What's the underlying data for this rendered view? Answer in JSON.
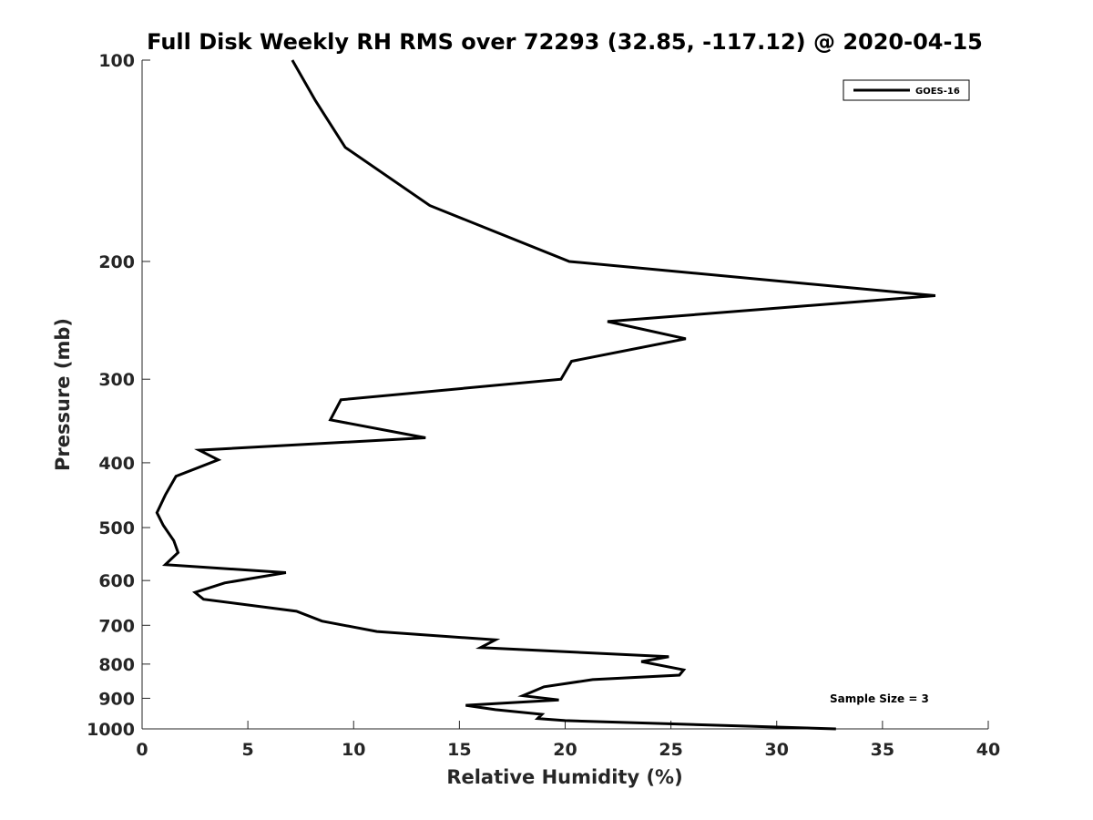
{
  "chart_data": {
    "type": "line",
    "title": "Full Disk Weekly RH RMS over 72293 (32.85, -117.12) @ 2020-04-15",
    "xlabel": "Relative Humidity (%)",
    "ylabel": "Pressure (mb)",
    "xlim": [
      0,
      40
    ],
    "ylim": [
      100,
      1000
    ],
    "yscale": "log",
    "y_reversed": true,
    "xticks": [
      0,
      5,
      10,
      15,
      20,
      25,
      30,
      35,
      40
    ],
    "yticks": [
      100,
      200,
      300,
      400,
      500,
      600,
      700,
      800,
      900,
      1000
    ],
    "grid": false,
    "legend_position": "top-right",
    "series": [
      {
        "name": "GOES-16",
        "color": "#000000",
        "points": [
          [
            7.1,
            100
          ],
          [
            8.2,
            115
          ],
          [
            9.6,
            135
          ],
          [
            13.6,
            165
          ],
          [
            20.2,
            200
          ],
          [
            37.5,
            225
          ],
          [
            22.0,
            246
          ],
          [
            25.7,
            261
          ],
          [
            20.3,
            282
          ],
          [
            19.8,
            300
          ],
          [
            9.4,
            322
          ],
          [
            8.9,
            345
          ],
          [
            13.4,
            367
          ],
          [
            2.7,
            383
          ],
          [
            3.6,
            396
          ],
          [
            1.6,
            419
          ],
          [
            1.1,
            447
          ],
          [
            0.7,
            475
          ],
          [
            1.0,
            496
          ],
          [
            1.5,
            523
          ],
          [
            1.7,
            545
          ],
          [
            1.1,
            568
          ],
          [
            6.8,
            584
          ],
          [
            3.9,
            605
          ],
          [
            2.5,
            625
          ],
          [
            2.9,
            640
          ],
          [
            7.3,
            667
          ],
          [
            8.5,
            690
          ],
          [
            11.1,
            715
          ],
          [
            16.7,
            736
          ],
          [
            16.0,
            756
          ],
          [
            24.9,
            780
          ],
          [
            23.6,
            793
          ],
          [
            25.6,
            816
          ],
          [
            25.4,
            831
          ],
          [
            21.3,
            844
          ],
          [
            19.0,
            865
          ],
          [
            18.0,
            892
          ],
          [
            19.7,
            905
          ],
          [
            15.3,
            922
          ],
          [
            16.7,
            936
          ],
          [
            18.9,
            951
          ],
          [
            18.7,
            965
          ],
          [
            20.0,
            972
          ],
          [
            32.8,
            1000
          ]
        ]
      }
    ],
    "annotation": "Sample Size = 3"
  }
}
